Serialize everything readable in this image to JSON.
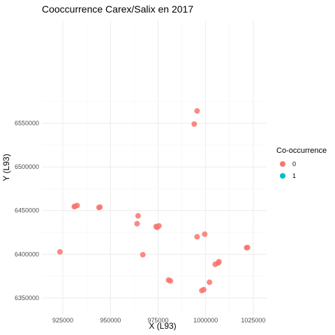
{
  "chart_data": {
    "type": "scatter",
    "title": "Cooccurrence Carex/Salix en 2017",
    "xlabel": "X (L93)",
    "ylabel": "Y (L93)",
    "xlim": [
      914000,
      1032000
    ],
    "ylim": [
      6330000,
      6667000
    ],
    "x_ticks": [
      925000,
      950000,
      975000,
      1000000,
      1025000
    ],
    "x_tick_labels": [
      "925000",
      "950000",
      "975000",
      "1000000",
      "1025000"
    ],
    "y_ticks": [
      6350000,
      6400000,
      6450000,
      6500000,
      6550000
    ],
    "y_tick_labels": [
      "6350000",
      "6400000",
      "6450000",
      "6500000",
      "6550000"
    ],
    "grid": true,
    "legend": {
      "title": "Co-occurrence",
      "position": "right",
      "entries": [
        {
          "label": "0",
          "color": "#F8766D"
        },
        {
          "label": "1",
          "color": "#00BFC4"
        }
      ]
    },
    "series": [
      {
        "name": "0",
        "color": "#F8766D",
        "points": [
          {
            "x": 995500,
            "y": 6564000
          },
          {
            "x": 994000,
            "y": 6549000
          },
          {
            "x": 932500,
            "y": 6455800
          },
          {
            "x": 931500,
            "y": 6455000
          },
          {
            "x": 931000,
            "y": 6454500
          },
          {
            "x": 944500,
            "y": 6454000
          },
          {
            "x": 944000,
            "y": 6453500
          },
          {
            "x": 964500,
            "y": 6444000
          },
          {
            "x": 964000,
            "y": 6435000
          },
          {
            "x": 975500,
            "y": 6432500
          },
          {
            "x": 974000,
            "y": 6431800
          },
          {
            "x": 974500,
            "y": 6430800
          },
          {
            "x": 999500,
            "y": 6423000
          },
          {
            "x": 995500,
            "y": 6420000
          },
          {
            "x": 923500,
            "y": 6402800
          },
          {
            "x": 967000,
            "y": 6399500
          },
          {
            "x": 1022000,
            "y": 6407800
          },
          {
            "x": 1021500,
            "y": 6407500
          },
          {
            "x": 1007000,
            "y": 6391500
          },
          {
            "x": 1006500,
            "y": 6390000
          },
          {
            "x": 1005000,
            "y": 6388500
          },
          {
            "x": 980500,
            "y": 6370500
          },
          {
            "x": 981500,
            "y": 6369500
          },
          {
            "x": 1002000,
            "y": 6368000
          },
          {
            "x": 999000,
            "y": 6359500
          },
          {
            "x": 998000,
            "y": 6358500
          }
        ]
      }
    ]
  }
}
